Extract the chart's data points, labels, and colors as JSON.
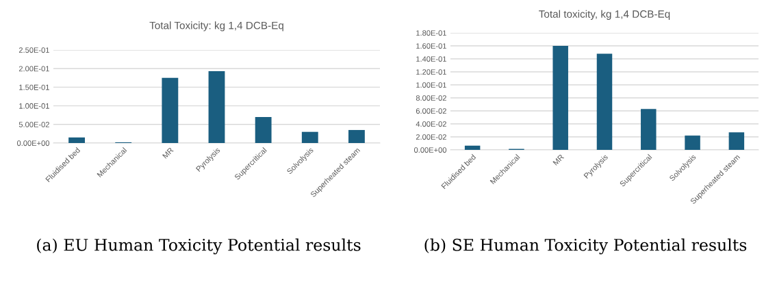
{
  "chart_data": [
    {
      "type": "bar",
      "title": "Total Toxicity: kg 1,4 DCB-Eq",
      "categories": [
        "Fluidised bed",
        "Mechanical",
        "MR",
        "Pyrolysis",
        "Supercritical",
        "Solvolysis",
        "Superheated steam"
      ],
      "values": [
        0.015,
        0.002,
        0.175,
        0.193,
        0.07,
        0.03,
        0.035
      ],
      "color": "#1a5e80",
      "ylim": [
        0,
        0.25
      ],
      "yticks": [
        {
          "value": 0,
          "label": "0.00E+00"
        },
        {
          "value": 0.05,
          "label": "5.00E-02"
        },
        {
          "value": 0.1,
          "label": "1.00E-01"
        },
        {
          "value": 0.15,
          "label": "1.50E-01"
        },
        {
          "value": 0.2,
          "label": "2.00E-01"
        },
        {
          "value": 0.25,
          "label": "2.50E-01"
        }
      ],
      "grid": "y",
      "legend": false,
      "annotations": [
        "(a) EU Human Toxicity Potential results"
      ]
    },
    {
      "type": "bar",
      "title": "Total toxicity, kg 1,4 DCB-Eq",
      "categories": [
        "Fluidised bed",
        "Mechanical",
        "MR",
        "Pyrolysis",
        "Supercritical",
        "Solvolysis",
        "Superheated steam"
      ],
      "values": [
        0.0065,
        0.0015,
        0.16,
        0.148,
        0.063,
        0.022,
        0.027
      ],
      "color": "#1a5e80",
      "ylim": [
        0,
        0.18
      ],
      "yticks": [
        {
          "value": 0,
          "label": "0.00E+00"
        },
        {
          "value": 0.02,
          "label": "2.00E-02"
        },
        {
          "value": 0.04,
          "label": "4.00E-02"
        },
        {
          "value": 0.06,
          "label": "6.00E-02"
        },
        {
          "value": 0.08,
          "label": "8.00E-02"
        },
        {
          "value": 0.1,
          "label": "1.00E-01"
        },
        {
          "value": 0.12,
          "label": "1.20E-01"
        },
        {
          "value": 0.14,
          "label": "1.40E-01"
        },
        {
          "value": 0.16,
          "label": "1.60E-01"
        },
        {
          "value": 0.18,
          "label": "1.80E-01"
        }
      ],
      "grid": "y",
      "legend": false,
      "annotations": [
        "(b) SE Human Toxicity Potential results"
      ]
    }
  ]
}
